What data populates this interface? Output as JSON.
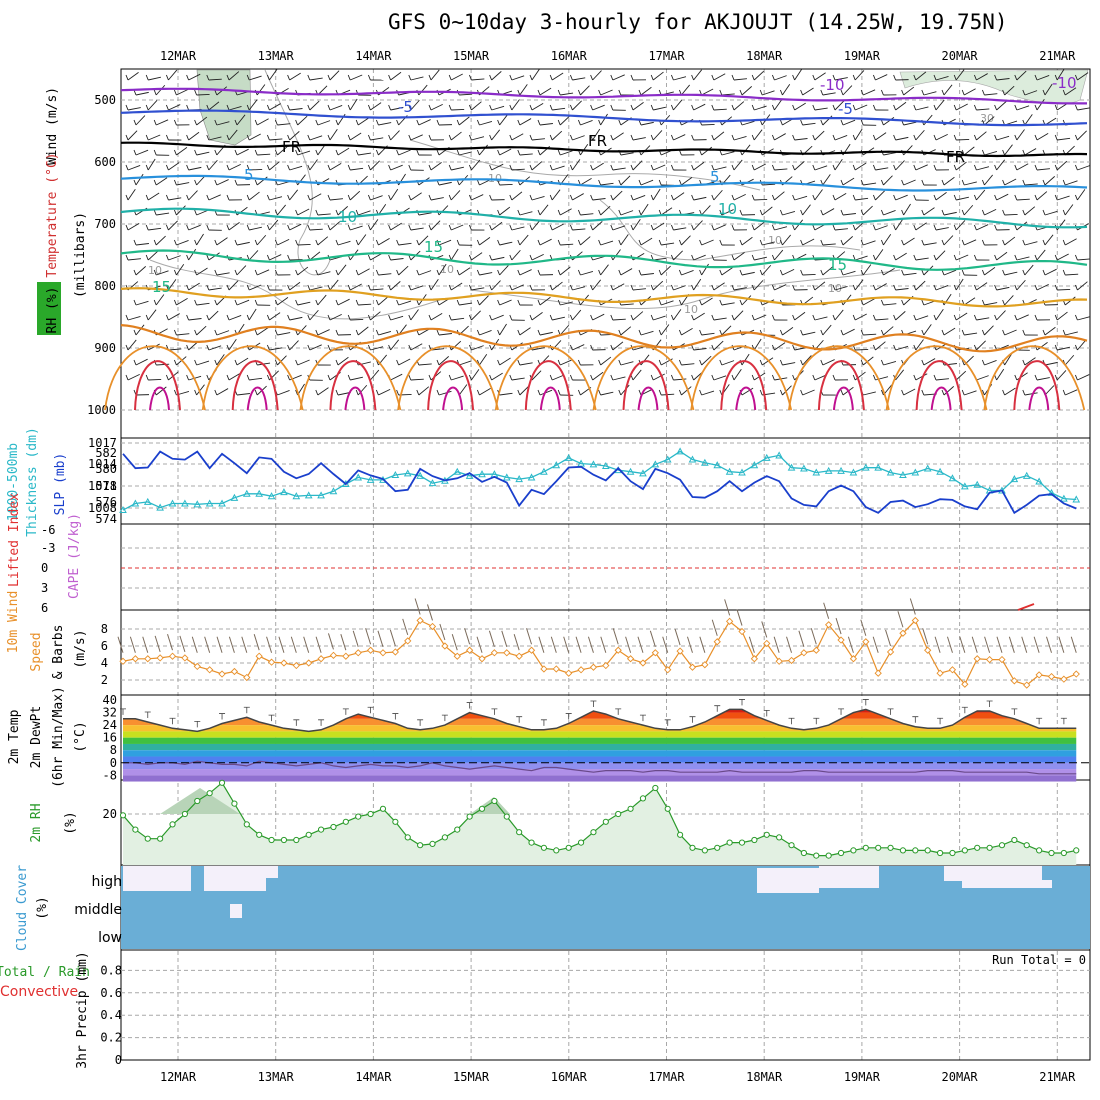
{
  "title": "GFS 0~10day 3-hourly for AKJOUJT (14.25W, 19.75N)",
  "colors": {
    "grid": "#a8a8a8",
    "slp": "#1a3fcc",
    "thick": "#2ab8c8",
    "wind": "#e8902a",
    "rh": "#2a9a2a",
    "rhfill": "#e2f0e2",
    "cloud": "#6aaed6",
    "cloudClear": "#f4f0fa",
    "temp": "#444444"
  },
  "chart_data": {
    "dates": [
      "12MAR",
      "13MAR",
      "14MAR",
      "15MAR",
      "16MAR",
      "17MAR",
      "18MAR",
      "19MAR",
      "20MAR",
      "21MAR"
    ],
    "panels": [
      {
        "id": "upper",
        "type": "contour",
        "ylabel": [
          "Wind (m/s)",
          "Temperature (°C)",
          "RH (%)",
          "(millibars)"
        ],
        "yticks": [
          "500",
          "600",
          "700",
          "800",
          "900",
          "1000"
        ],
        "contours": [
          {
            "label": "-10",
            "level": -10
          },
          {
            "label": "-5",
            "level": -5
          },
          {
            "label": "FR",
            "level": 0
          },
          {
            "label": "5",
            "level": 5
          },
          {
            "label": "10",
            "level": 10
          },
          {
            "label": "15",
            "level": 15
          }
        ]
      },
      {
        "id": "slp",
        "type": "line",
        "ylabel": [
          "1000-500mb",
          "Thickness (dm)",
          "SLP (mb)"
        ],
        "left_ticks": [
          "582",
          "580",
          "578",
          "576",
          "574"
        ],
        "right_ticks": [
          "1017",
          "1014",
          "1011",
          "1008"
        ],
        "series": [
          {
            "name": "SLP (mb)",
            "values": [
              1015.5,
              1013.5,
              1013.6,
              1015.8,
              1014.8,
              1014.7,
              1015.8,
              1013.5,
              1015.5,
              1014.2,
              1012.8,
              1015.0,
              1014.8,
              1013.0,
              1012.1,
              1012.7,
              1014.2,
              1012.7,
              1011.3,
              1013.2,
              1012.5,
              1012.0,
              1010.3,
              1010.5,
              1013.4,
              1012.4,
              1011.8,
              1012.1,
              1012.8,
              1011.6,
              1012.3,
              1011.5,
              1008.3,
              1010.5,
              1009.9,
              1011.7,
              1013.6,
              1013.7,
              1012.6,
              1011.8,
              1013.5,
              1011.7,
              1010.6,
              1013.4,
              1012.8,
              1011.9,
              1009.5,
              1009.4,
              1010.3,
              1011.7,
              1010.3,
              1011.5,
              1012.4,
              1011.7,
              1009.3,
              1008.4,
              1008.2,
              1010.3,
              1011.1,
              1010.3,
              1008.1,
              1007.3,
              1008.8,
              1009.0,
              1008.1,
              1008.5,
              1009.2,
              1009.1,
              1008.2,
              1007.8,
              1010.1,
              1010.4,
              1007.3,
              1008.4,
              1009.7,
              1009.9,
              1008.6,
              1007.9
            ]
          },
          {
            "name": "Thickness (dm)",
            "values": [
              575.0,
              575.8,
              576.0,
              575.3,
              575.8,
              575.8,
              575.7,
              575.8,
              575.8,
              576.5,
              577.0,
              577.0,
              576.7,
              577.2,
              576.7,
              576.8,
              576.8,
              577.3,
              578.2,
              579.0,
              578.7,
              578.7,
              579.3,
              579.5,
              579.2,
              578.3,
              578.6,
              579.7,
              579.2,
              579.4,
              579.4,
              579.0,
              578.8,
              579.0,
              579.7,
              580.5,
              581.4,
              580.7,
              580.6,
              580.4,
              579.9,
              579.7,
              579.5,
              580.6,
              581.2,
              582.2,
              581.2,
              580.8,
              580.5,
              579.7,
              579.6,
              580.5,
              581.4,
              581.7,
              580.2,
              580.1,
              579.6,
              579.8,
              579.8,
              579.6,
              580.2,
              580.2,
              579.6,
              579.3,
              579.6,
              580.1,
              579.7,
              578.9,
              577.9,
              578.1,
              577.4,
              577.4,
              578.8,
              579.2,
              578.5,
              577.1,
              576.4,
              576.3
            ]
          }
        ]
      },
      {
        "id": "cape",
        "type": "line",
        "ylabel": [
          "Lifted Index",
          "CAPE (J/kg)"
        ],
        "yticks": [
          "-6",
          "-3",
          "0",
          "3",
          "6"
        ],
        "series": [
          {
            "name": "Lifted Index",
            "values": []
          },
          {
            "name": "CAPE (J/kg)",
            "values": []
          }
        ]
      },
      {
        "id": "wind",
        "type": "line",
        "ylabel": [
          "10m Wind",
          "Speed",
          "& Barbs",
          "(m/s)"
        ],
        "yticks": [
          "8",
          "6",
          "4",
          "2"
        ],
        "series": [
          {
            "name": "10m Wind Speed",
            "values": [
              4.2,
              4.5,
              4.5,
              4.6,
              4.8,
              4.6,
              3.6,
              3.2,
              2.7,
              3.0,
              2.3,
              4.8,
              4.1,
              4.0,
              3.7,
              4.0,
              4.5,
              4.9,
              4.8,
              5.2,
              5.5,
              5.2,
              5.3,
              6.6,
              9.0,
              8.3,
              6.0,
              4.8,
              5.5,
              4.5,
              5.2,
              5.2,
              4.8,
              5.5,
              3.3,
              3.3,
              2.8,
              3.2,
              3.5,
              3.7,
              5.5,
              4.5,
              4.0,
              5.2,
              3.2,
              5.4,
              3.5,
              3.8,
              6.5,
              8.9,
              7.7,
              4.5,
              6.3,
              4.2,
              4.3,
              5.2,
              5.5,
              8.5,
              6.7,
              4.5,
              6.5,
              2.8,
              5.3,
              7.5,
              9.0,
              5.5,
              2.8,
              3.2,
              1.5,
              4.5,
              4.4,
              4.4,
              1.9,
              1.4,
              2.6,
              2.4,
              2.1,
              2.7
            ]
          }
        ]
      },
      {
        "id": "temp",
        "type": "area",
        "ylabel": [
          "2m Temp",
          "2m DewPt",
          "(6hr Min/Max)",
          "(°C)"
        ],
        "yticks": [
          "40",
          "32",
          "24",
          "16",
          "8",
          "0",
          "-8"
        ],
        "series": [
          {
            "name": "2m Temp",
            "values": [
              28,
              28,
              26,
              24,
              22,
              21,
              20,
              22,
              25,
              27,
              29,
              26,
              24,
              22,
              21,
              20,
              21,
              24,
              28,
              31,
              29,
              27,
              25,
              22,
              21,
              22,
              24,
              28,
              32,
              30,
              28,
              25,
              23,
              21,
              21,
              22,
              25,
              29,
              33,
              31,
              28,
              26,
              24,
              22,
              21,
              21,
              23,
              26,
              30,
              34,
              34,
              30,
              27,
              24,
              22,
              21,
              22,
              24,
              28,
              32,
              34,
              31,
              28,
              25,
              23,
              22,
              22,
              24,
              29,
              33,
              33,
              30,
              28,
              25,
              22,
              22,
              22,
              22
            ]
          },
          {
            "name": "2m DewPt",
            "values": [
              0,
              0,
              -1,
              0,
              0,
              -1,
              1,
              0,
              -1,
              -1,
              -2,
              1,
              0,
              -1,
              -2,
              -1,
              0,
              -2,
              -3,
              -2,
              -1,
              -2,
              -2,
              -3,
              -2,
              0,
              -2,
              -3,
              -4,
              -3,
              -2,
              -3,
              -4,
              -5,
              -3,
              -3,
              -4,
              -5,
              -6,
              -5,
              -5,
              -5,
              -6,
              -5,
              -5,
              -6,
              -6,
              -6,
              -6,
              -5,
              -6,
              -6,
              -6,
              -6,
              -6,
              -5,
              -5,
              -6,
              -6,
              -6,
              -6,
              -6,
              -6,
              -6,
              -6,
              -5,
              -5,
              -5,
              -6,
              -6,
              -6,
              -6,
              -6,
              -6,
              -7,
              -7,
              -7,
              -7
            ]
          }
        ]
      },
      {
        "id": "rh",
        "type": "area",
        "ylabel": [
          "2m RH",
          "(%)"
        ],
        "yticks": [
          "20"
        ],
        "series": [
          {
            "name": "2m RH",
            "values": [
              19.5,
              14,
              10.5,
              10.5,
              16,
              20,
              25,
              28,
              32,
              24,
              16,
              12,
              10,
              10,
              10,
              12,
              14,
              15,
              17,
              19,
              20,
              22,
              17,
              11,
              8,
              8.5,
              11,
              14,
              19,
              22,
              25,
              19,
              13,
              9,
              7,
              6,
              7,
              9,
              13,
              17,
              20,
              22,
              26,
              30,
              22,
              12,
              7,
              6,
              7,
              9,
              9,
              10,
              12,
              11,
              8,
              5,
              4,
              4,
              5,
              6,
              7,
              7,
              7,
              6,
              6,
              6,
              5,
              5,
              6,
              7,
              7,
              8,
              10,
              8,
              6,
              5,
              5,
              6
            ]
          }
        ]
      },
      {
        "id": "cloud",
        "type": "heatmap",
        "ylabel": [
          "Cloud Cover",
          "(%)"
        ],
        "levels": [
          "high",
          "middle",
          "low"
        ]
      },
      {
        "id": "precip",
        "type": "bar",
        "ylabel": [
          "Total / Rain",
          "Convective",
          "3hr Precip (mm)"
        ],
        "yticks": [
          "0.8",
          "0.6",
          "0.4",
          "0.2",
          "0"
        ],
        "annotation": "Run Total = 0",
        "values": []
      }
    ]
  }
}
